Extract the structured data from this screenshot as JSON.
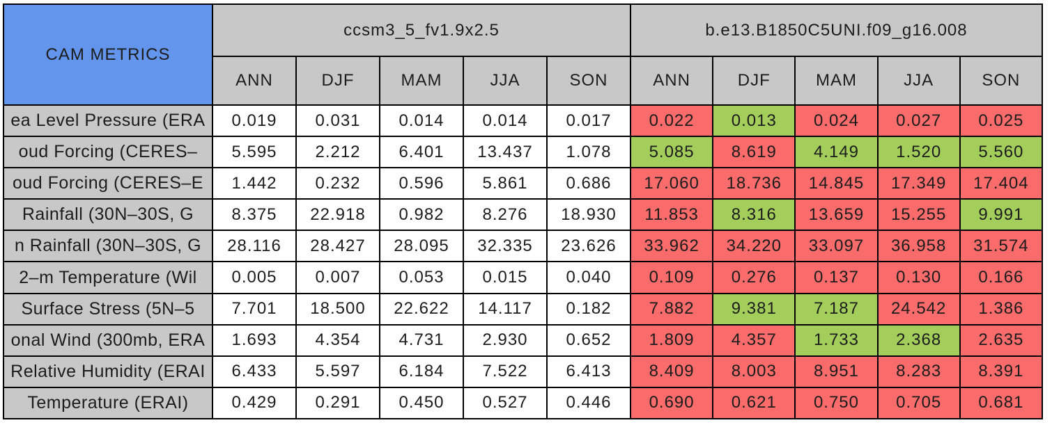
{
  "colors": {
    "title_bg": "#6495ED",
    "header_bg": "#C8C8C8",
    "border": "#000000",
    "model1_cell_bg": "#FFFFFF",
    "better_bg": "#A3CE5C",
    "worse_bg": "#FA6B6B",
    "text": "#1C1C1C",
    "page_bg": "#FFFFFF"
  },
  "chart_data": {
    "type": "table",
    "title": "CAM METRICS",
    "column_groups": [
      "ccsm3_5_fv1.9x2.5",
      "b.e13.B1850C5UNI.f09_g16.008"
    ],
    "seasons": [
      "ANN",
      "DJF",
      "MAM",
      "JJA",
      "SON"
    ],
    "highlight_legend": {
      "better": "green (lower than first model)",
      "worse": "red (higher than first model)"
    },
    "rows": [
      {
        "label": "ea Level Pressure (ERA",
        "m1": [
          "0.019",
          "0.031",
          "0.014",
          "0.014",
          "0.017"
        ],
        "m2": [
          "0.022",
          "0.013",
          "0.024",
          "0.027",
          "0.025"
        ],
        "m2_status": [
          "worse",
          "better",
          "worse",
          "worse",
          "worse"
        ]
      },
      {
        "label": "oud Forcing (CERES–",
        "m1": [
          "5.595",
          "2.212",
          "6.401",
          "13.437",
          "1.078"
        ],
        "m2": [
          "5.085",
          "8.619",
          "4.149",
          "1.520",
          "5.560"
        ],
        "m2_status": [
          "better",
          "worse",
          "better",
          "better",
          "better"
        ]
      },
      {
        "label": "oud Forcing (CERES–E",
        "m1": [
          "1.442",
          "0.232",
          "0.596",
          "5.861",
          "0.686"
        ],
        "m2": [
          "17.060",
          "18.736",
          "14.845",
          "17.349",
          "17.404"
        ],
        "m2_status": [
          "worse",
          "worse",
          "worse",
          "worse",
          "worse"
        ]
      },
      {
        "label": "Rainfall (30N–30S, G",
        "m1": [
          "8.375",
          "22.918",
          "0.982",
          "8.276",
          "18.930"
        ],
        "m2": [
          "11.853",
          "8.316",
          "13.659",
          "15.255",
          "9.991"
        ],
        "m2_status": [
          "worse",
          "better",
          "worse",
          "worse",
          "better"
        ]
      },
      {
        "label": "n Rainfall (30N–30S, G",
        "m1": [
          "28.116",
          "28.427",
          "28.095",
          "32.335",
          "23.626"
        ],
        "m2": [
          "33.962",
          "34.220",
          "33.097",
          "36.958",
          "31.574"
        ],
        "m2_status": [
          "worse",
          "worse",
          "worse",
          "worse",
          "worse"
        ]
      },
      {
        "label": "2–m Temperature (Wil",
        "m1": [
          "0.005",
          "0.007",
          "0.053",
          "0.015",
          "0.040"
        ],
        "m2": [
          "0.109",
          "0.276",
          "0.137",
          "0.130",
          "0.166"
        ],
        "m2_status": [
          "worse",
          "worse",
          "worse",
          "worse",
          "worse"
        ]
      },
      {
        "label": "Surface Stress (5N–5",
        "m1": [
          "7.701",
          "18.500",
          "22.622",
          "14.117",
          "0.182"
        ],
        "m2": [
          "7.882",
          "9.381",
          "7.187",
          "24.542",
          "1.386"
        ],
        "m2_status": [
          "worse",
          "better",
          "better",
          "worse",
          "worse"
        ]
      },
      {
        "label": "onal Wind (300mb, ERA",
        "m1": [
          "1.693",
          "4.354",
          "4.731",
          "2.930",
          "0.652"
        ],
        "m2": [
          "1.809",
          "4.357",
          "1.733",
          "2.368",
          "2.635"
        ],
        "m2_status": [
          "worse",
          "worse",
          "better",
          "better",
          "worse"
        ]
      },
      {
        "label": "Relative Humidity (ERAI",
        "m1": [
          "6.433",
          "5.597",
          "6.184",
          "7.522",
          "6.413"
        ],
        "m2": [
          "8.409",
          "8.003",
          "8.951",
          "8.283",
          "8.391"
        ],
        "m2_status": [
          "worse",
          "worse",
          "worse",
          "worse",
          "worse"
        ]
      },
      {
        "label": "Temperature (ERAI)",
        "m1": [
          "0.429",
          "0.291",
          "0.450",
          "0.527",
          "0.446"
        ],
        "m2": [
          "0.690",
          "0.621",
          "0.750",
          "0.705",
          "0.681"
        ],
        "m2_status": [
          "worse",
          "worse",
          "worse",
          "worse",
          "worse"
        ]
      }
    ]
  }
}
